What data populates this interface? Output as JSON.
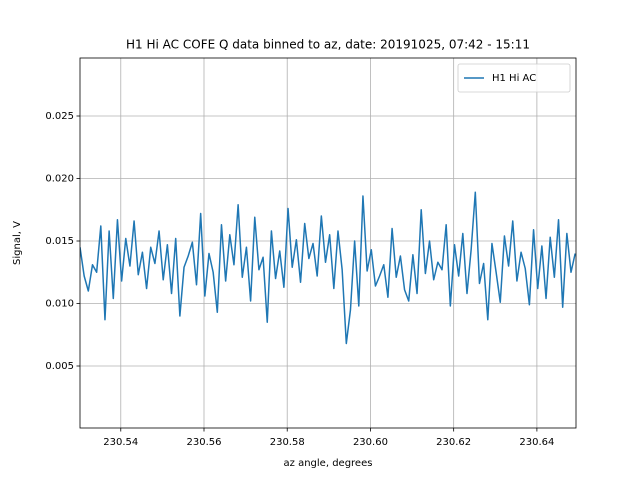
{
  "chart_data": {
    "type": "line",
    "title": "H1 Hi AC COFE Q data binned to az, date: 20191025, 07:42 - 15:11",
    "xlabel": "az angle, degrees",
    "ylabel": "Signal, V",
    "x": [
      230.5302,
      230.5312,
      230.5322,
      230.5332,
      230.5342,
      230.5352,
      230.5362,
      230.5372,
      230.5382,
      230.5392,
      230.5402,
      230.5412,
      230.5422,
      230.5432,
      230.5442,
      230.5452,
      230.5462,
      230.5472,
      230.5482,
      230.5492,
      230.5502,
      230.5512,
      230.5522,
      230.5532,
      230.5542,
      230.5552,
      230.5562,
      230.5572,
      230.5582,
      230.5592,
      230.5602,
      230.5612,
      230.5622,
      230.5632,
      230.5642,
      230.5652,
      230.5662,
      230.5672,
      230.5682,
      230.5692,
      230.5702,
      230.5712,
      230.5722,
      230.5732,
      230.5742,
      230.5752,
      230.5762,
      230.5772,
      230.5782,
      230.5792,
      230.5802,
      230.5812,
      230.5822,
      230.5832,
      230.5842,
      230.5852,
      230.5862,
      230.5872,
      230.5882,
      230.5892,
      230.5902,
      230.5912,
      230.5922,
      230.5932,
      230.5942,
      230.5952,
      230.5962,
      230.5972,
      230.5982,
      230.5992,
      230.6002,
      230.6012,
      230.6022,
      230.6032,
      230.6042,
      230.6052,
      230.6062,
      230.6072,
      230.6082,
      230.6092,
      230.6102,
      230.6112,
      230.6122,
      230.6132,
      230.6142,
      230.6152,
      230.6162,
      230.6172,
      230.6182,
      230.6192,
      230.6202,
      230.6212,
      230.6222,
      230.6232,
      230.6242,
      230.6252,
      230.6262,
      230.6272,
      230.6282,
      230.6292,
      230.6302,
      230.6312,
      230.6322,
      230.6332,
      230.6342,
      230.6352,
      230.6362,
      230.6372,
      230.6382,
      230.6392,
      230.6402,
      230.6412,
      230.6422,
      230.6432,
      230.6442,
      230.6452,
      230.6462,
      230.6472,
      230.6482,
      230.6492
    ],
    "series": [
      {
        "name": "H1 Hi AC",
        "color": "#1f77b4",
        "values": [
          0.0145,
          0.0122,
          0.011,
          0.0131,
          0.0125,
          0.0162,
          0.0087,
          0.0158,
          0.0104,
          0.0167,
          0.0118,
          0.0152,
          0.013,
          0.0166,
          0.0123,
          0.0141,
          0.0112,
          0.0145,
          0.0132,
          0.0158,
          0.0119,
          0.0147,
          0.0108,
          0.0152,
          0.009,
          0.0129,
          0.0138,
          0.0149,
          0.0115,
          0.0172,
          0.0106,
          0.014,
          0.0125,
          0.0093,
          0.0163,
          0.0118,
          0.0155,
          0.0131,
          0.0179,
          0.0121,
          0.0145,
          0.0102,
          0.0169,
          0.0127,
          0.0137,
          0.0085,
          0.0158,
          0.012,
          0.0142,
          0.0113,
          0.0176,
          0.0129,
          0.0151,
          0.0117,
          0.0164,
          0.0136,
          0.0148,
          0.0122,
          0.017,
          0.0133,
          0.0155,
          0.0112,
          0.0158,
          0.0127,
          0.0068,
          0.0095,
          0.015,
          0.0098,
          0.0186,
          0.0126,
          0.0143,
          0.0114,
          0.0122,
          0.0131,
          0.0105,
          0.016,
          0.0121,
          0.0138,
          0.0111,
          0.0102,
          0.0139,
          0.0108,
          0.0175,
          0.0124,
          0.015,
          0.0119,
          0.0133,
          0.0127,
          0.0163,
          0.0098,
          0.0147,
          0.0122,
          0.0156,
          0.0108,
          0.0143,
          0.0189,
          0.0116,
          0.0132,
          0.0087,
          0.0148,
          0.0125,
          0.0101,
          0.0154,
          0.013,
          0.0166,
          0.0118,
          0.0141,
          0.0128,
          0.0099,
          0.0159,
          0.0112,
          0.0146,
          0.0104,
          0.0153,
          0.0121,
          0.0167,
          0.0097,
          0.0156,
          0.0125,
          0.014
        ]
      }
    ],
    "xlim": [
      230.5302,
      230.6494
    ],
    "xticks": [
      230.54,
      230.56,
      230.58,
      {
        "value": 230.6,
        "label": "230.60"
      },
      230.62,
      230.64
    ],
    "ylim": [
      4e-05,
      0.02964
    ],
    "yticks": [
      0.005,
      {
        "value": 0.01,
        "label": "0.010"
      },
      0.015,
      {
        "value": 0.02,
        "label": "0.020"
      },
      0.025
    ],
    "grid": true,
    "legend": "upper right"
  }
}
